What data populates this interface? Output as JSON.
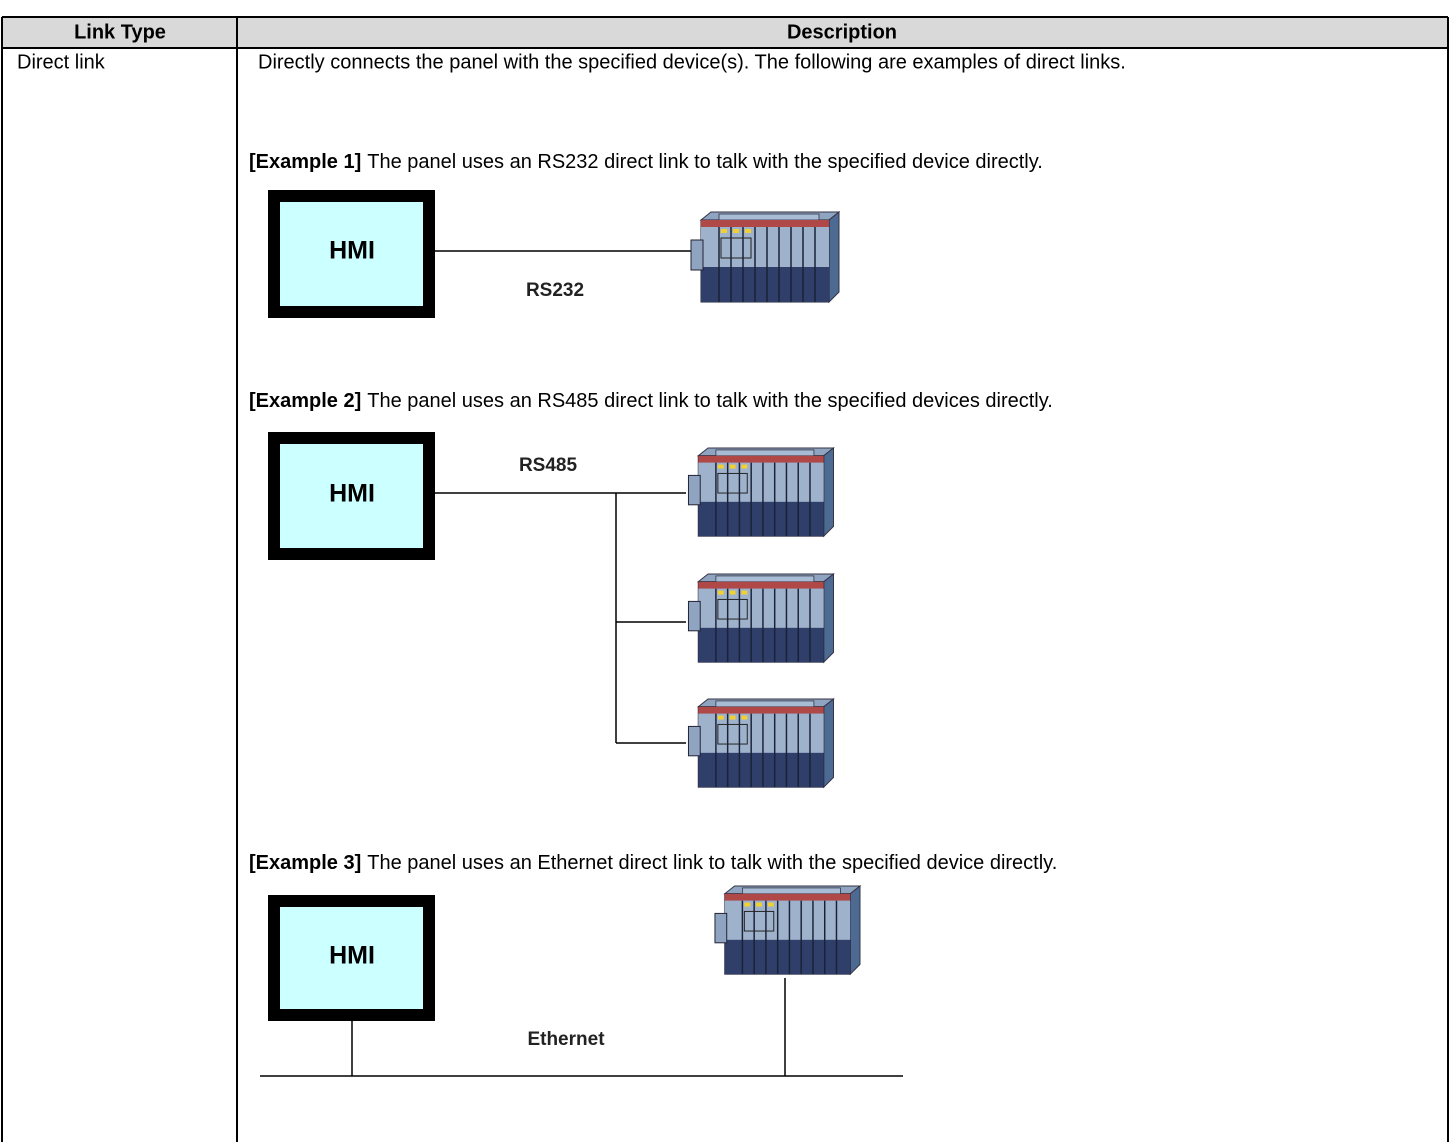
{
  "table": {
    "headers": [
      "Link Type",
      "Description"
    ],
    "rows": [
      {
        "link_type": "Direct link",
        "description": "Directly connects the panel with the specified device(s). The following are examples of direct links.",
        "examples": [
          {
            "label": "[Example 1]",
            "text": "The panel uses an RS232 direct link to talk with the specified device directly.",
            "diagram": {
              "hmi": "HMI",
              "link": "RS232"
            }
          },
          {
            "label": "[Example 2]",
            "text": "The panel uses an RS485 direct link to talk with the specified devices directly.",
            "diagram": {
              "hmi": "HMI",
              "link": "RS485"
            }
          },
          {
            "label": "[Example 3]",
            "text": "The panel uses an Ethernet direct link to talk with the specified device directly.",
            "diagram": {
              "hmi": "HMI",
              "link": "Ethernet"
            }
          }
        ]
      }
    ]
  }
}
